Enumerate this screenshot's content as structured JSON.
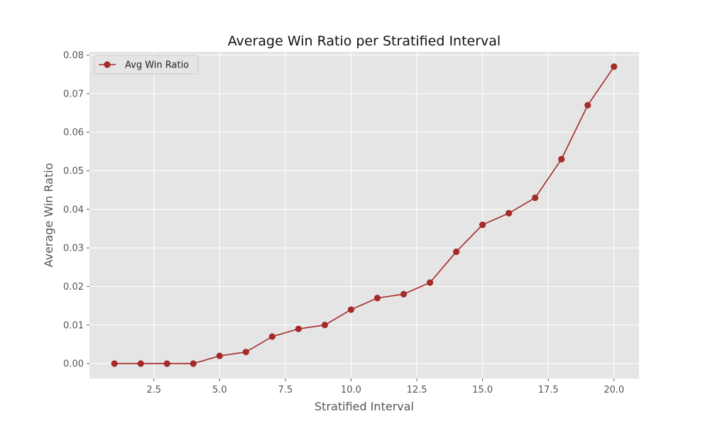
{
  "chart_data": {
    "type": "line",
    "title": "Average Win Ratio per Stratified Interval",
    "xlabel": "Stratified Interval",
    "ylabel": "Average Win Ratio",
    "xlim": [
      0.05,
      20.95
    ],
    "ylim": [
      -0.00385,
      0.08085
    ],
    "xticks": [
      2.5,
      5.0,
      7.5,
      10.0,
      12.5,
      15.0,
      17.5,
      20.0
    ],
    "xtick_labels": [
      "2.5",
      "5.0",
      "7.5",
      "10.0",
      "12.5",
      "15.0",
      "17.5",
      "20.0"
    ],
    "yticks": [
      0.0,
      0.01,
      0.02,
      0.03,
      0.04,
      0.05,
      0.06,
      0.07,
      0.08
    ],
    "ytick_labels": [
      "0.00",
      "0.01",
      "0.02",
      "0.03",
      "0.04",
      "0.05",
      "0.06",
      "0.07",
      "0.08"
    ],
    "grid": true,
    "legend_position": "top-left",
    "series": [
      {
        "name": "Avg Win Ratio",
        "color": "#a52a2a",
        "marker": "circle",
        "x": [
          1,
          2,
          3,
          4,
          5,
          6,
          7,
          8,
          9,
          10,
          11,
          12,
          13,
          14,
          15,
          16,
          17,
          18,
          19,
          20
        ],
        "y": [
          0.0,
          0.0,
          0.0,
          0.0,
          0.002,
          0.003,
          0.007,
          0.009,
          0.01,
          0.014,
          0.017,
          0.018,
          0.021,
          0.029,
          0.036,
          0.039,
          0.043,
          0.053,
          0.067,
          0.077
        ]
      }
    ]
  },
  "colors": {
    "plot_background": "#e5e5e5",
    "grid": "#ffffff",
    "line": "#a52a2a"
  }
}
